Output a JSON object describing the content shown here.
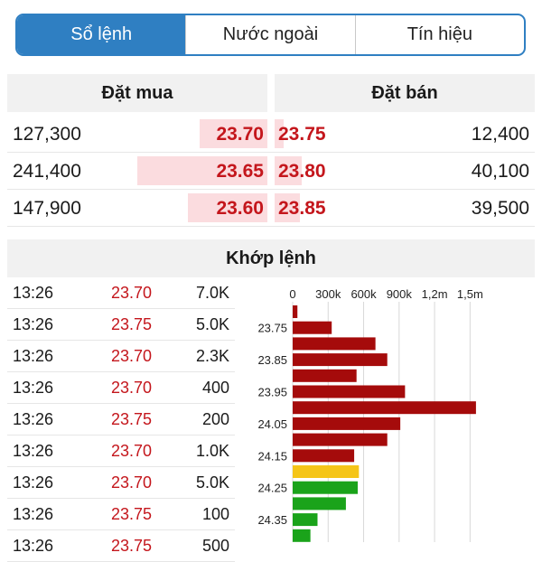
{
  "tabs": [
    {
      "label": "Sổ lệnh",
      "active": true
    },
    {
      "label": "Nước ngoài",
      "active": false
    },
    {
      "label": "Tín hiệu",
      "active": false
    }
  ],
  "orderbook": {
    "buy_title": "Đặt mua",
    "sell_title": "Đặt bán",
    "rows": [
      {
        "buy_volume": "127,300",
        "buy_price": "23.70",
        "sell_price": "23.75",
        "sell_volume": "12,400"
      },
      {
        "buy_volume": "241,400",
        "buy_price": "23.65",
        "sell_price": "23.80",
        "sell_volume": "40,100"
      },
      {
        "buy_volume": "147,900",
        "buy_price": "23.60",
        "sell_price": "23.85",
        "sell_volume": "39,500"
      }
    ]
  },
  "matched": {
    "title": "Khớp lệnh",
    "trades": [
      {
        "time": "13:26",
        "price": "23.70",
        "volume": "7.0K"
      },
      {
        "time": "13:26",
        "price": "23.75",
        "volume": "5.0K"
      },
      {
        "time": "13:26",
        "price": "23.70",
        "volume": "2.3K"
      },
      {
        "time": "13:26",
        "price": "23.70",
        "volume": "400"
      },
      {
        "time": "13:26",
        "price": "23.75",
        "volume": "200"
      },
      {
        "time": "13:26",
        "price": "23.70",
        "volume": "1.0K"
      },
      {
        "time": "13:26",
        "price": "23.70",
        "volume": "5.0K"
      },
      {
        "time": "13:26",
        "price": "23.75",
        "volume": "100"
      },
      {
        "time": "13:26",
        "price": "23.75",
        "volume": "500"
      }
    ]
  },
  "colors": {
    "accent": "#2f7fc2",
    "down": "#a50b0b",
    "reference": "#f5c518",
    "up": "#1aa31a"
  },
  "chart_data": {
    "type": "bar",
    "orientation": "horizontal",
    "xticks": [
      "0",
      "300k",
      "600k",
      "900k",
      "1,2m",
      "1,5m"
    ],
    "xlim": [
      0,
      1650000
    ],
    "grid": true,
    "ytick_labels": [
      "23.75",
      "23.85",
      "23.95",
      "24.05",
      "24.15",
      "24.25",
      "24.35"
    ],
    "categories": [
      "23.70",
      "23.75",
      "23.80",
      "23.85",
      "23.90",
      "23.95",
      "24.00",
      "24.05",
      "24.10",
      "24.15",
      "24.20",
      "24.25",
      "24.30",
      "24.35",
      "24.40"
    ],
    "values": [
      40000,
      330000,
      700000,
      800000,
      540000,
      950000,
      1550000,
      910000,
      800000,
      520000,
      560000,
      550000,
      450000,
      210000,
      150000
    ],
    "bar_colors": [
      "down",
      "down",
      "down",
      "down",
      "down",
      "down",
      "down",
      "down",
      "down",
      "down",
      "reference",
      "up",
      "up",
      "up",
      "up"
    ]
  }
}
